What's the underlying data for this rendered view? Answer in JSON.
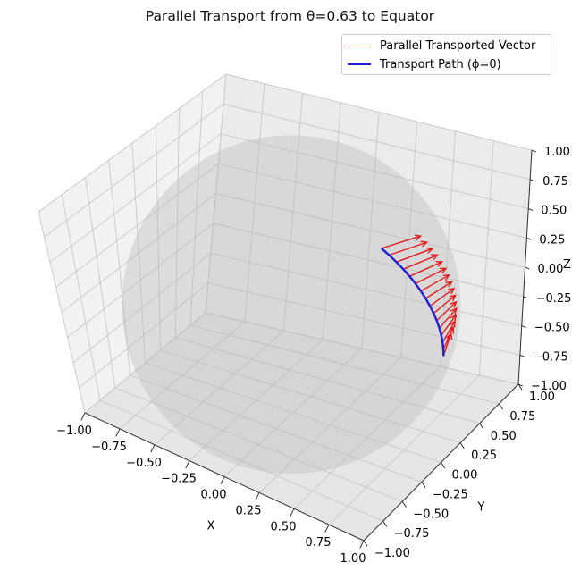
{
  "chart_data": {
    "type": "line3d",
    "title": "Parallel Transport from θ=0.63 to Equator",
    "xlabel": "X",
    "ylabel": "Y",
    "zlabel": "Z",
    "xlim": [
      -1.0,
      1.0
    ],
    "ylim": [
      -1.0,
      1.0
    ],
    "zlim": [
      -1.0,
      1.0
    ],
    "xticks": [
      "−1.00",
      "−0.75",
      "−0.50",
      "−0.25",
      "0.00",
      "0.25",
      "0.50",
      "0.75",
      "1.00"
    ],
    "yticks": [
      "−1.00",
      "−0.75",
      "−0.50",
      "−0.25",
      "0.00",
      "0.25",
      "0.50",
      "0.75",
      "1.00"
    ],
    "zticks": [
      "−1.00",
      "−0.75",
      "−0.50",
      "−0.25",
      "0.00",
      "0.25",
      "0.50",
      "0.75",
      "1.00"
    ],
    "grid": true,
    "legend_position": "top-right",
    "sphere": {
      "radius": 1.0,
      "color": "#b4b4b4",
      "opacity": 0.35
    },
    "path": {
      "theta_start": 0.63,
      "theta_end": 1.5708,
      "phi": 0
    },
    "vector_count": 16,
    "vector_length": 0.25,
    "series": [
      {
        "name": "Parallel Transported Vector",
        "color": "#e41a1c",
        "kind": "vectors"
      },
      {
        "name": "Transport Path (ϕ=0)",
        "color": "#1f1fd6",
        "kind": "path"
      }
    ]
  }
}
